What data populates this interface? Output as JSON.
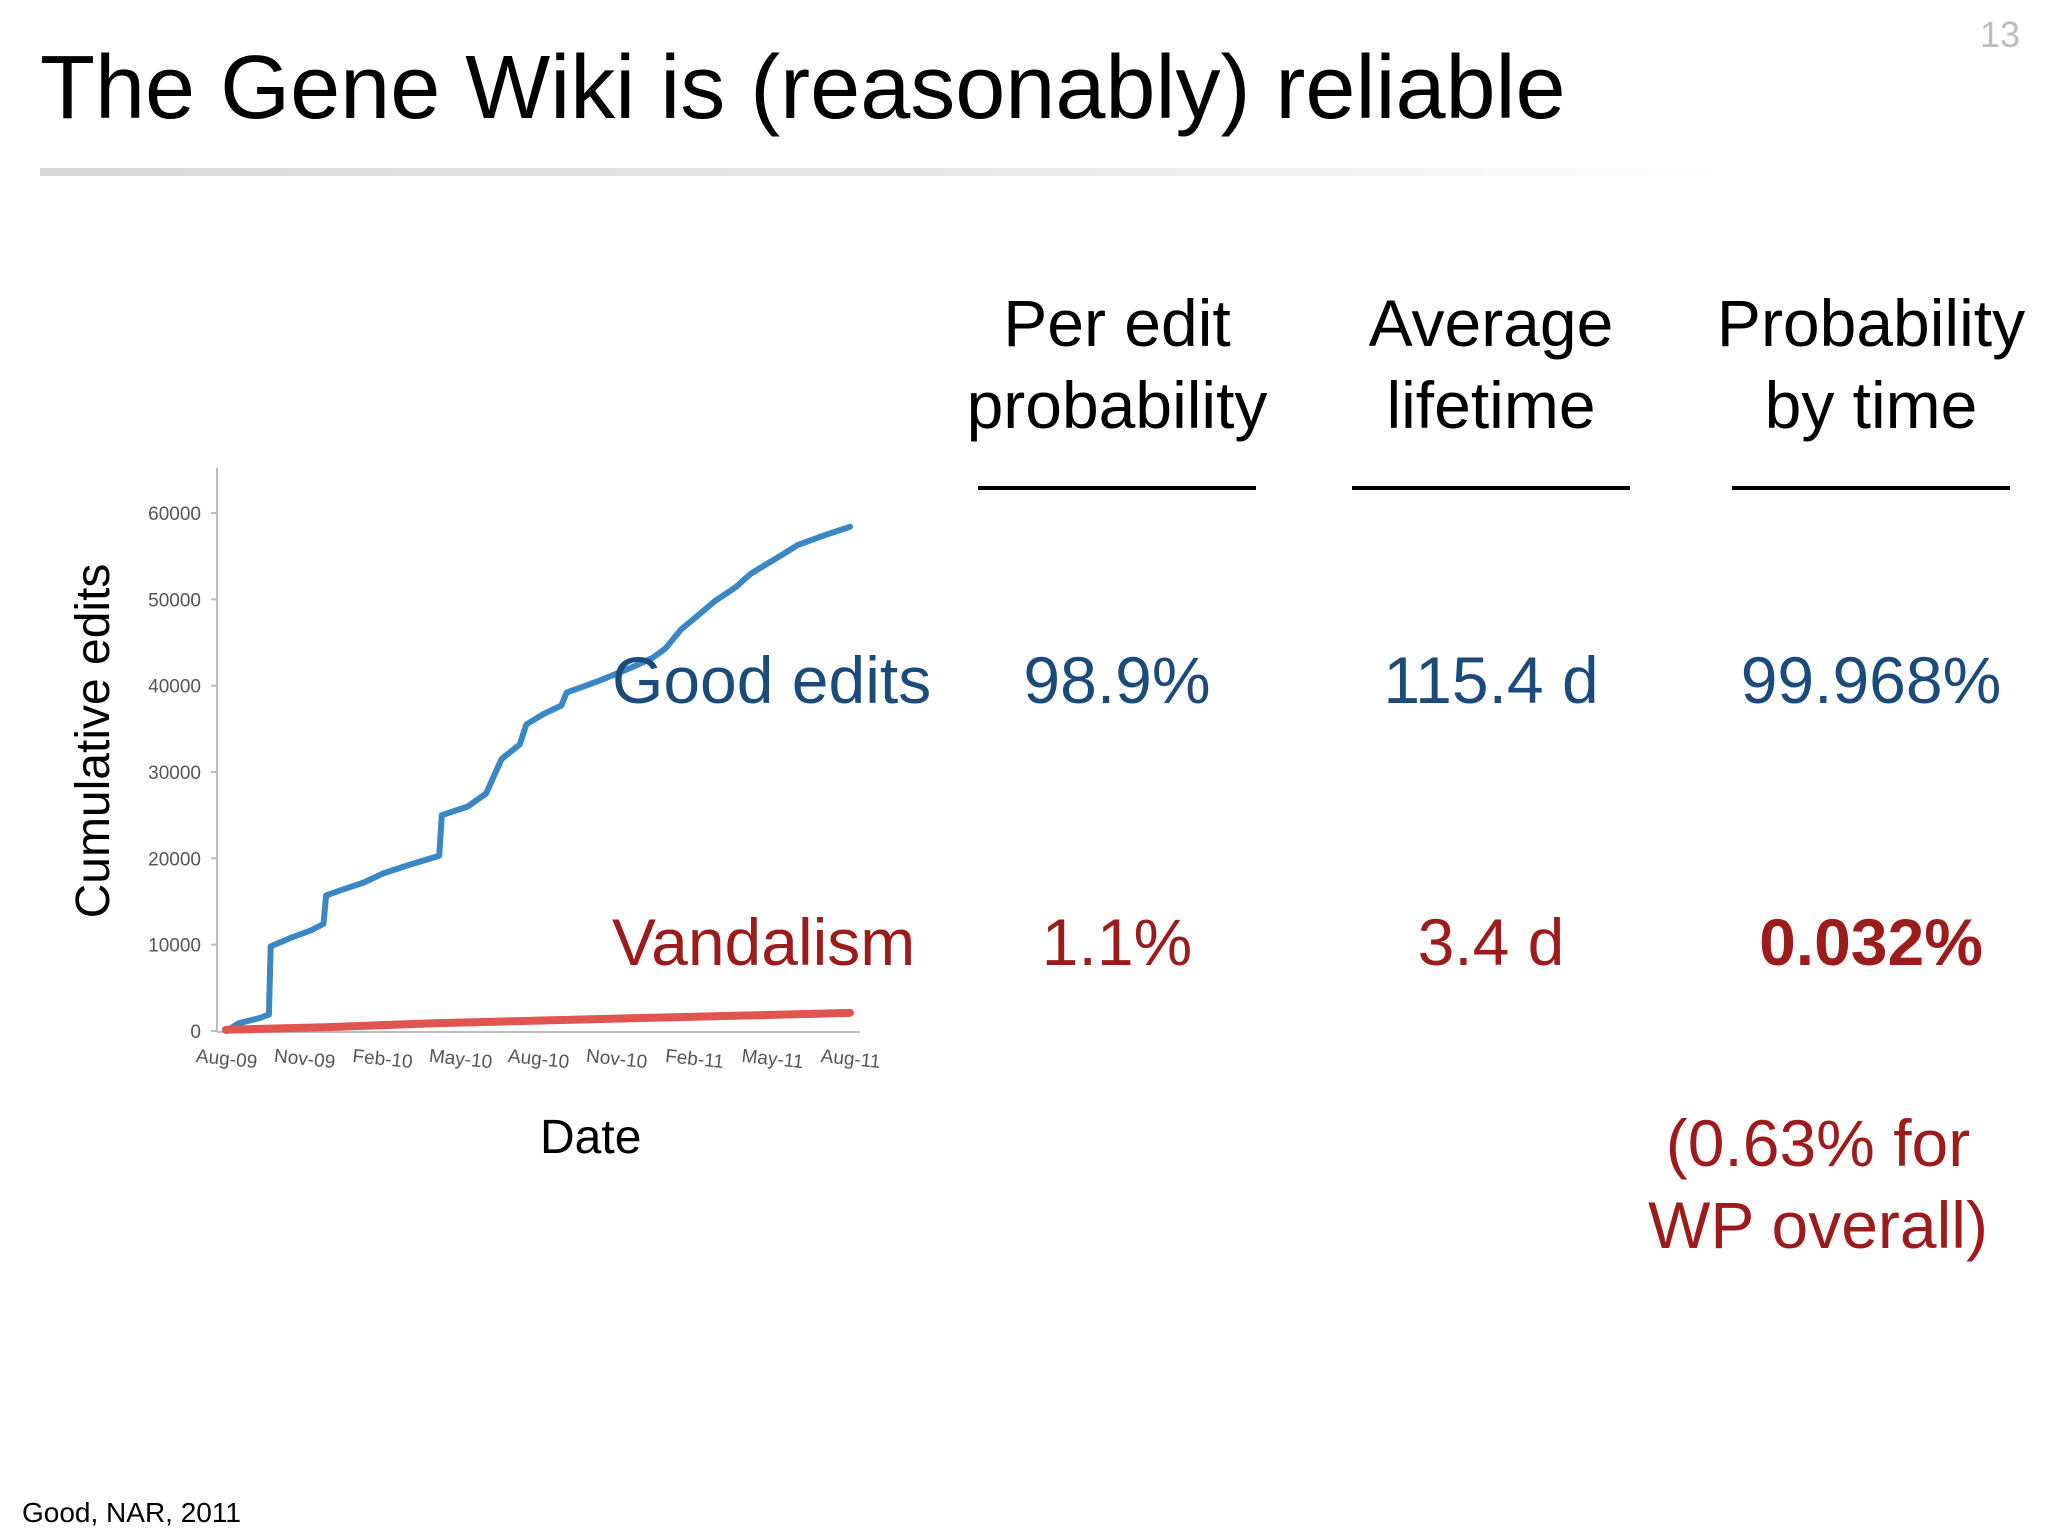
{
  "slide": {
    "number": "13",
    "title": "The Gene Wiki is (reasonably) reliable",
    "citation": "Good, NAR, 2011"
  },
  "table": {
    "columns": [
      {
        "line1": "Per edit",
        "line2": "probability"
      },
      {
        "line1": "Average",
        "line2": "lifetime"
      },
      {
        "line1": "Probability",
        "line2": "by time"
      }
    ],
    "rows": [
      {
        "label": "Good edits",
        "values": [
          "98.9%",
          "115.4 d",
          "99.968%"
        ],
        "color": "#1b4b7a"
      },
      {
        "label": "Vandalism",
        "values": [
          "1.1%",
          "3.4 d",
          "0.032%"
        ],
        "color": "#9c1c1c"
      }
    ],
    "note_line1": "(0.63% for",
    "note_line2": "WP overall)"
  },
  "chart_data": {
    "type": "line",
    "xlabel": "Date",
    "ylabel": "Cumulative edits",
    "x_ticks": [
      "Aug-09",
      "Nov-09",
      "Feb-10",
      "May-10",
      "Aug-10",
      "Nov-10",
      "Feb-11",
      "May-11",
      "Aug-11"
    ],
    "y_ticks": [
      "0",
      "10000",
      "20000",
      "30000",
      "40000",
      "50000",
      "60000"
    ],
    "ylim": [
      0,
      60000
    ],
    "xlim_months": [
      0,
      24
    ],
    "grid": false,
    "legend": "none",
    "series": [
      {
        "color": "#3a87c5",
        "points": [
          [
            0.0,
            0
          ],
          [
            0.5,
            900
          ],
          [
            1.3,
            1500
          ],
          [
            1.65,
            1900
          ],
          [
            1.72,
            9800
          ],
          [
            2.5,
            10800
          ],
          [
            3.3,
            11700
          ],
          [
            3.75,
            12400
          ],
          [
            3.85,
            15700
          ],
          [
            4.4,
            16300
          ],
          [
            5.3,
            17200
          ],
          [
            6.0,
            18200
          ],
          [
            7.0,
            19200
          ],
          [
            8.2,
            20300
          ],
          [
            8.3,
            25000
          ],
          [
            9.3,
            26000
          ],
          [
            10.0,
            27500
          ],
          [
            10.6,
            31500
          ],
          [
            11.3,
            33200
          ],
          [
            11.55,
            35500
          ],
          [
            12.2,
            36700
          ],
          [
            12.9,
            37700
          ],
          [
            13.1,
            39200
          ],
          [
            14.3,
            40500
          ],
          [
            15.6,
            42100
          ],
          [
            16.4,
            43200
          ],
          [
            16.9,
            44300
          ],
          [
            17.5,
            46500
          ],
          [
            18.1,
            48000
          ],
          [
            18.8,
            49800
          ],
          [
            19.6,
            51400
          ],
          [
            20.2,
            53000
          ],
          [
            21.3,
            55000
          ],
          [
            22.0,
            56300
          ],
          [
            23.0,
            57400
          ],
          [
            24.0,
            58400
          ]
        ]
      },
      {
        "color": "#e05550",
        "points": [
          [
            0.0,
            150
          ],
          [
            4.0,
            450
          ],
          [
            8.0,
            900
          ],
          [
            12.0,
            1200
          ],
          [
            16.0,
            1500
          ],
          [
            20.0,
            1800
          ],
          [
            24.0,
            2100
          ]
        ]
      }
    ]
  }
}
